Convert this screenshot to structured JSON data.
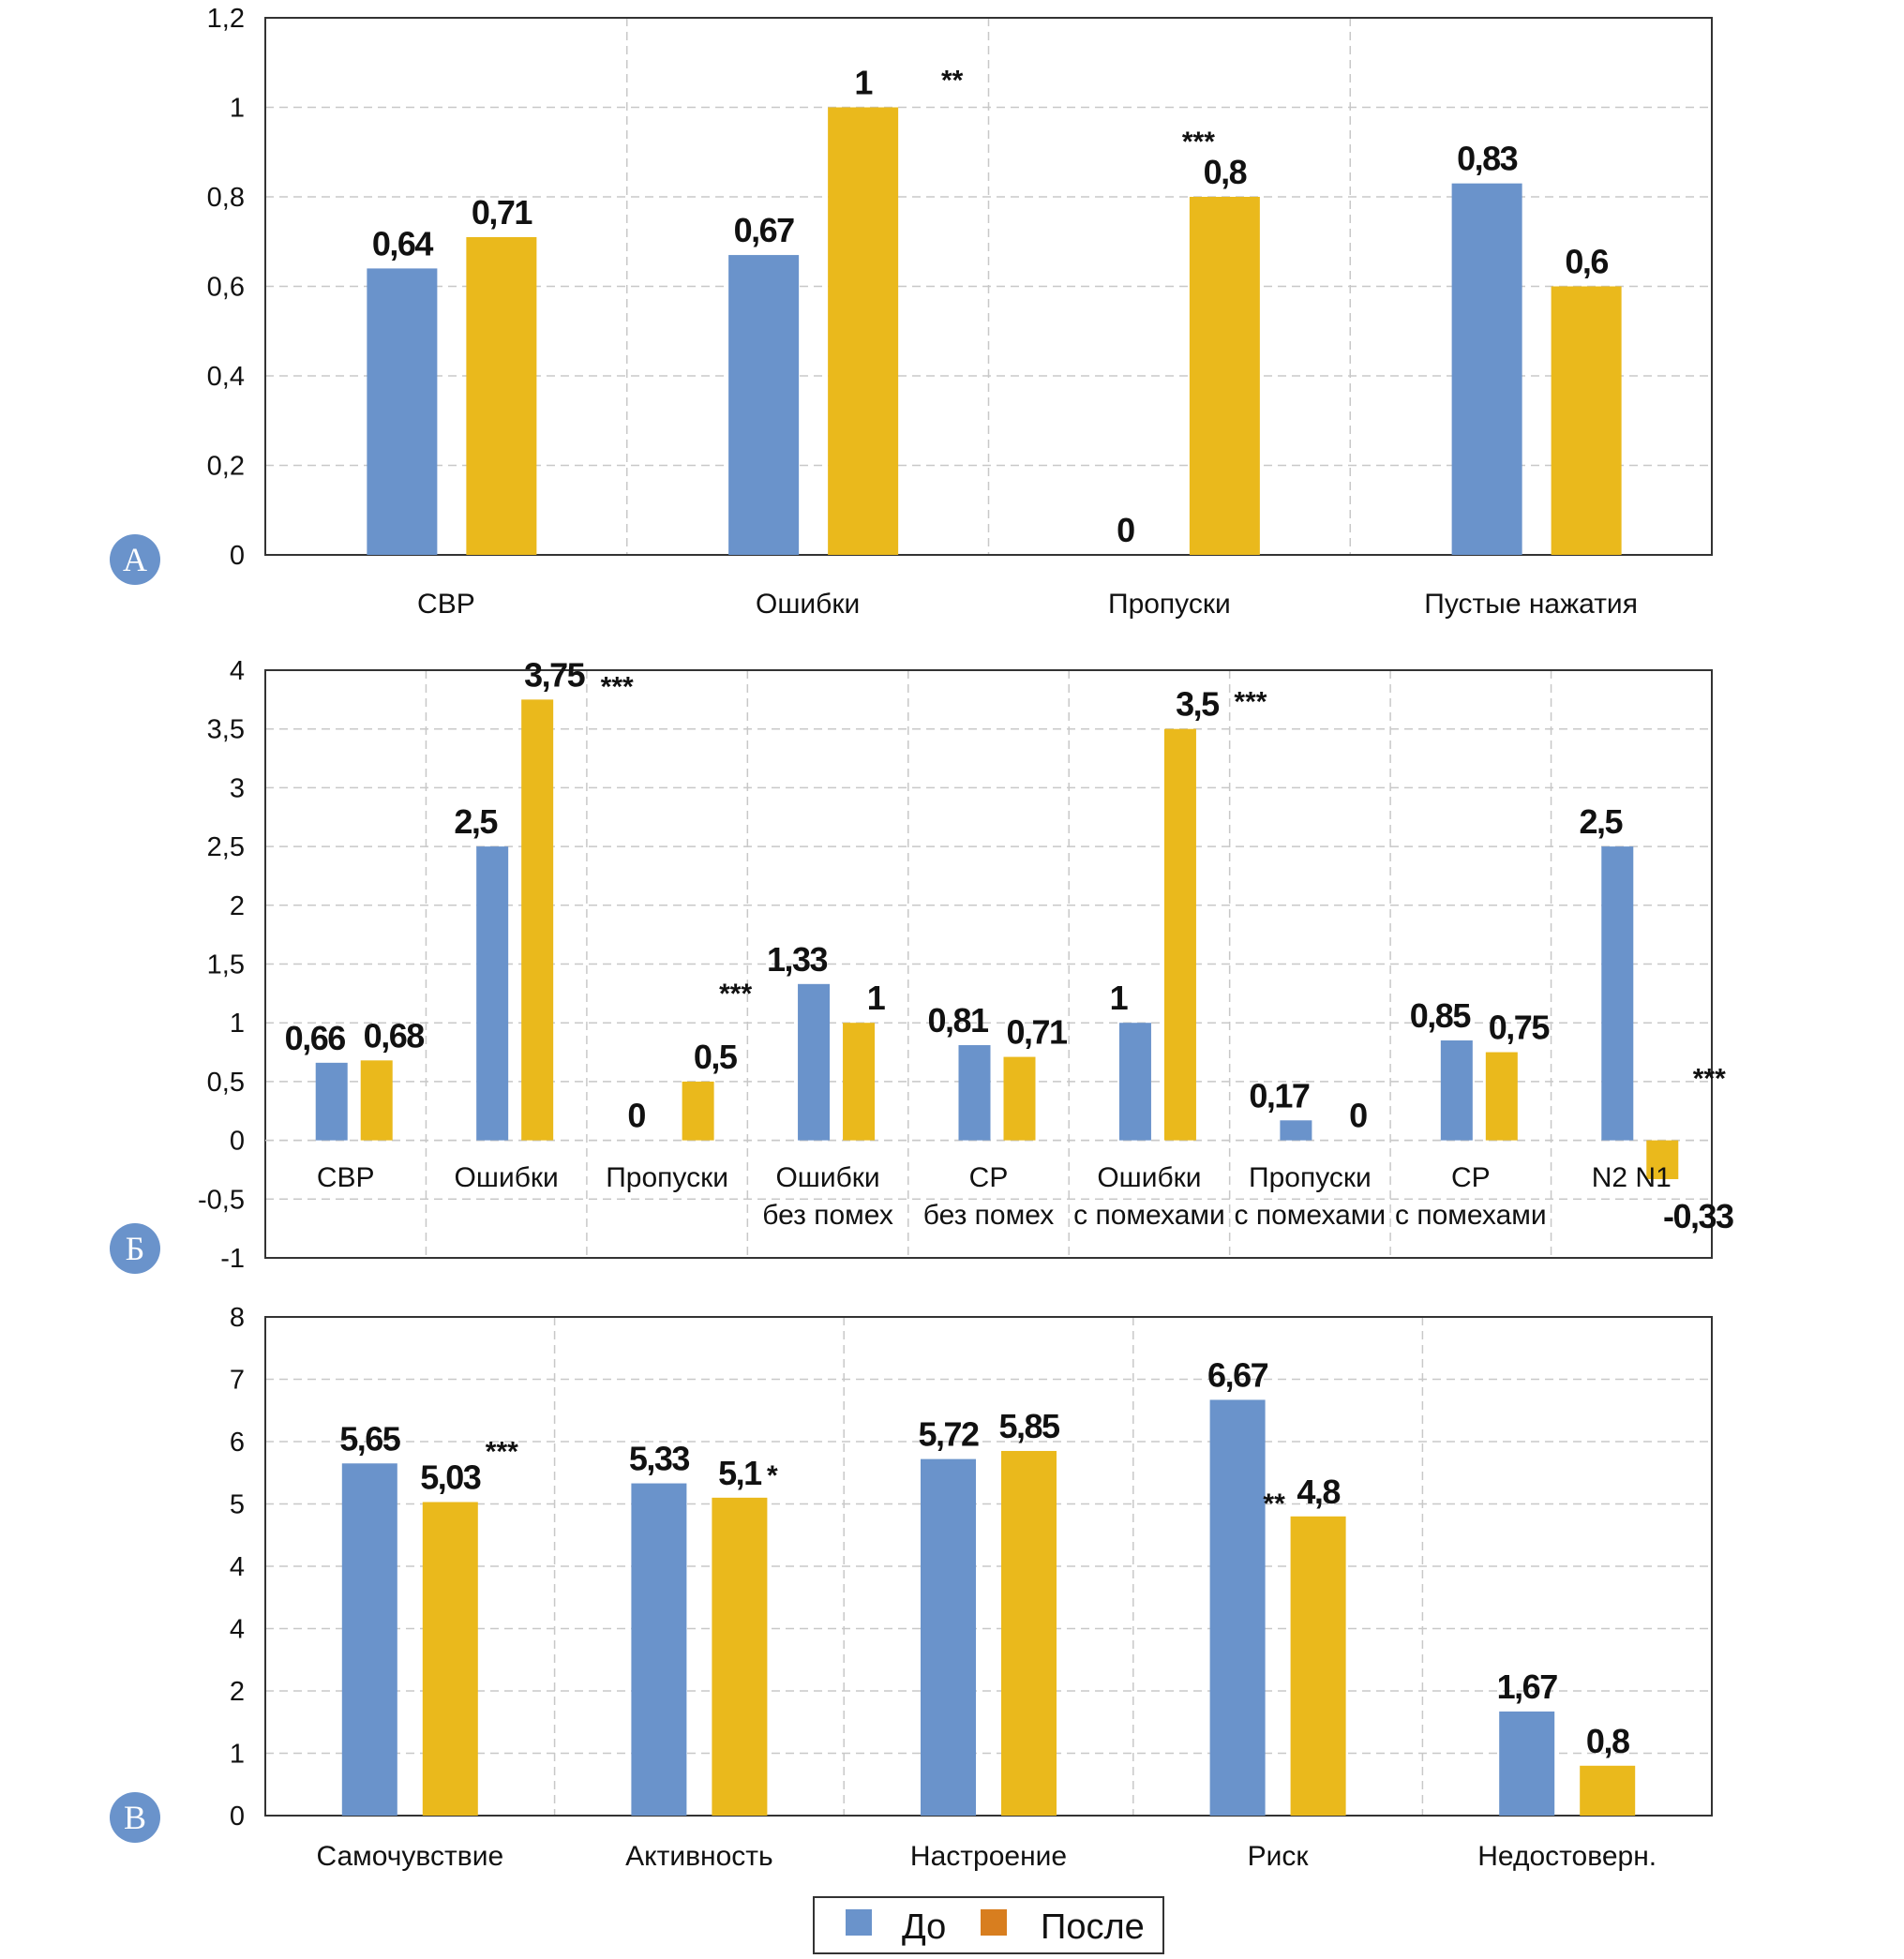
{
  "colors": {
    "before": "#6A93CB",
    "after": "#EAB91C",
    "after_legend": "#D87E1F",
    "panel_letter_bg": "#6A93CB"
  },
  "legend": {
    "items": [
      {
        "label": "До",
        "color": "#6A93CB"
      },
      {
        "label": "После",
        "color": "#D87E1F"
      }
    ]
  },
  "chart_data": [
    {
      "type": "bar",
      "panel_letter": "А",
      "ylim": [
        0,
        1.2
      ],
      "yticks": [
        "0",
        "0,2",
        "0,4",
        "0,6",
        "0,8",
        "1",
        "1,2"
      ],
      "categories": [
        [
          "СВР"
        ],
        [
          "Ошибки"
        ],
        [
          "Пропуски"
        ],
        [
          "Пустые нажатия"
        ]
      ],
      "series": [
        {
          "name": "До",
          "values": [
            0.64,
            0.67,
            0,
            0.83
          ],
          "labels": [
            "0,64",
            "0,67",
            "0",
            "0,83"
          ]
        },
        {
          "name": "После",
          "values": [
            0.71,
            1,
            0.8,
            0.6
          ],
          "labels": [
            "0,71",
            "1",
            "0,8",
            "0,6"
          ]
        }
      ],
      "significance": [
        "",
        "**",
        "***",
        ""
      ],
      "grid": true
    },
    {
      "type": "bar",
      "panel_letter": "Б",
      "ylim": [
        -1,
        4
      ],
      "yticks": [
        "-1",
        "-0,5",
        "0",
        "0,5",
        "1",
        "1,5",
        "2",
        "2,5",
        "3",
        "3,5",
        "4"
      ],
      "categories": [
        [
          "СВР"
        ],
        [
          "Ошибки"
        ],
        [
          "Пропуски"
        ],
        [
          "Ошибки",
          "без помех"
        ],
        [
          "СР",
          "без помех"
        ],
        [
          "Ошибки",
          "с помехами"
        ],
        [
          "Пропуски",
          "с помехами"
        ],
        [
          "СР",
          "с помехами"
        ],
        [
          "N2 N1"
        ]
      ],
      "series": [
        {
          "name": "До",
          "values": [
            0.66,
            2.5,
            0,
            1.33,
            0.81,
            1,
            0.17,
            0.85,
            2.5
          ],
          "labels": [
            "0,66",
            "2,5",
            "0",
            "1,33",
            "0,81",
            "1",
            "0,17",
            "0,85",
            "2,5"
          ]
        },
        {
          "name": "После",
          "values": [
            0.68,
            3.75,
            0.5,
            1,
            0.71,
            3.5,
            0,
            0.75,
            -0.33
          ],
          "labels": [
            "0,68",
            "3,75",
            "0,5",
            "1",
            "0,71",
            "3,5",
            "0",
            "0,75",
            "-0,33"
          ]
        }
      ],
      "significance": [
        "",
        "***",
        "***",
        "",
        "",
        "***",
        "",
        "",
        "***"
      ],
      "grid": true
    },
    {
      "type": "bar",
      "panel_letter": "В",
      "ylim": [
        0,
        8
      ],
      "yticks": [
        "0",
        "1",
        "2",
        "4",
        "4",
        "5",
        "6",
        "7",
        "8"
      ],
      "categories": [
        [
          "Самочувствие"
        ],
        [
          "Активность"
        ],
        [
          "Настроение"
        ],
        [
          "Риск"
        ],
        [
          "Недостоверн."
        ]
      ],
      "series": [
        {
          "name": "До",
          "values": [
            5.65,
            5.33,
            5.72,
            6.67,
            1.67
          ],
          "labels": [
            "5,65",
            "5,33",
            "5,72",
            "6,67",
            "1,67"
          ]
        },
        {
          "name": "После",
          "values": [
            5.03,
            5.1,
            5.85,
            4.8,
            0.8
          ],
          "labels": [
            "5,03",
            "5,1",
            "5,85",
            "4,8",
            "0,8"
          ]
        }
      ],
      "significance": [
        "***",
        "*",
        "",
        "**",
        ""
      ],
      "grid": true
    }
  ]
}
